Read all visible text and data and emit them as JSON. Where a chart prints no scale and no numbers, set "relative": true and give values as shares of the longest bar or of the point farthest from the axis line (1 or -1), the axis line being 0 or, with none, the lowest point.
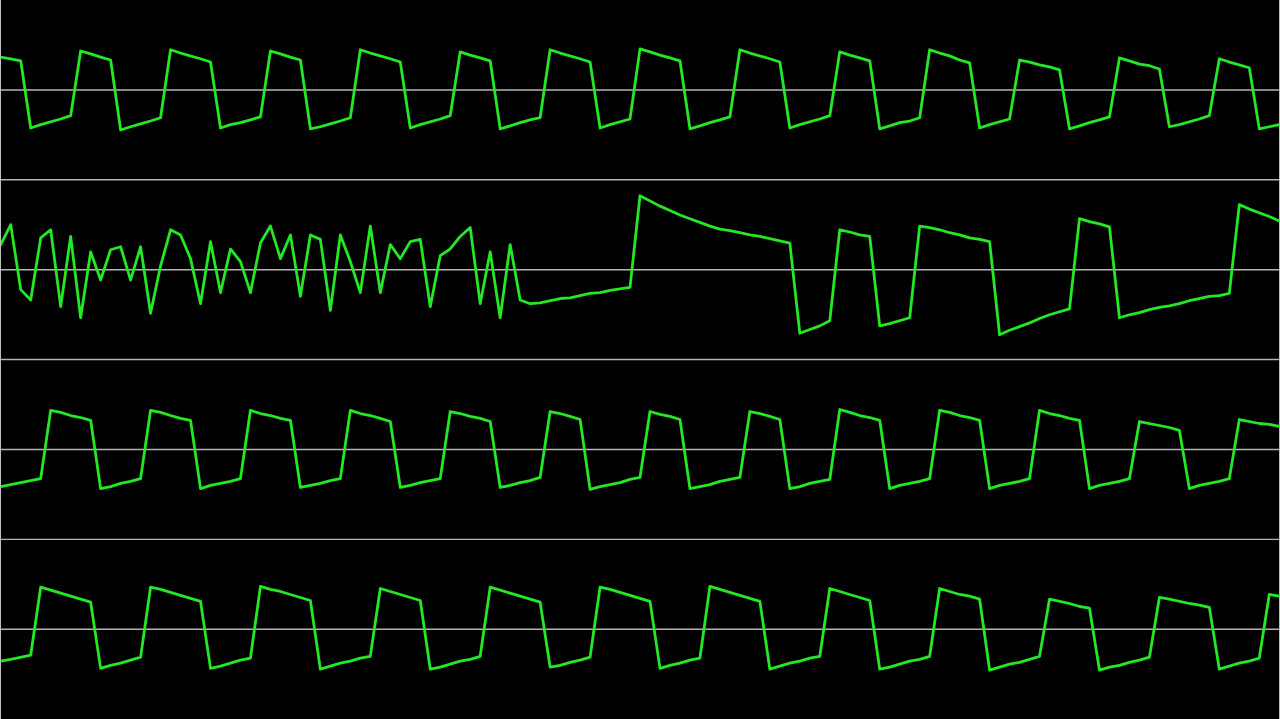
{
  "chart_data": [
    {
      "type": "line",
      "relative": true,
      "color": "#24e824",
      "categories": [
        null,
        null,
        null,
        null,
        null,
        null,
        null,
        null,
        null,
        null,
        null,
        null,
        null,
        null,
        null,
        null,
        null,
        null,
        null,
        null,
        null,
        null,
        null,
        null,
        null,
        null,
        null,
        null,
        null,
        null,
        null,
        null,
        null,
        null,
        null,
        null,
        null,
        null,
        null,
        null,
        null,
        null,
        null,
        null,
        null,
        null,
        null,
        null,
        null,
        null,
        null,
        null,
        null,
        null,
        null,
        null,
        null,
        null,
        null,
        null,
        null,
        null,
        null,
        null,
        null,
        null,
        null,
        null,
        null,
        null,
        null,
        null,
        null,
        null,
        null,
        null,
        null,
        null,
        null,
        null,
        null,
        null,
        null,
        null,
        null,
        null,
        null,
        null,
        null,
        null,
        null,
        null,
        null,
        null,
        null,
        null,
        null,
        null,
        null,
        null,
        null,
        null,
        null,
        null,
        null,
        null,
        null,
        null,
        null,
        null,
        null,
        null,
        null,
        null,
        null,
        null,
        null,
        null,
        null,
        null,
        null,
        null,
        null,
        null,
        null,
        null,
        null,
        null,
        null
      ],
      "values": [
        0.8,
        0.76,
        0.71,
        -0.93,
        -0.85,
        -0.78,
        -0.71,
        -0.63,
        0.95,
        0.88,
        0.8,
        0.73,
        -0.98,
        -0.9,
        -0.83,
        -0.76,
        -0.68,
        0.98,
        0.9,
        0.83,
        0.76,
        0.68,
        -0.93,
        -0.85,
        -0.8,
        -0.73,
        -0.66,
        0.95,
        0.88,
        0.8,
        0.73,
        -0.95,
        -0.9,
        -0.83,
        -0.76,
        -0.68,
        0.98,
        0.9,
        0.83,
        0.76,
        0.68,
        -0.93,
        -0.85,
        -0.78,
        -0.71,
        -0.63,
        0.93,
        0.85,
        0.78,
        0.71,
        -0.95,
        -0.88,
        -0.8,
        -0.73,
        -0.68,
        0.98,
        0.9,
        0.83,
        0.76,
        0.68,
        -0.93,
        -0.85,
        -0.78,
        -0.71,
        1.0,
        0.93,
        0.85,
        0.78,
        0.71,
        -0.95,
        -0.88,
        -0.8,
        -0.73,
        -0.66,
        0.98,
        0.9,
        0.83,
        0.76,
        0.68,
        -0.93,
        -0.85,
        -0.78,
        -0.71,
        -0.63,
        0.93,
        0.85,
        0.78,
        0.71,
        -0.95,
        -0.88,
        -0.8,
        -0.76,
        -0.68,
        0.98,
        0.9,
        0.83,
        0.73,
        0.66,
        -0.93,
        -0.85,
        -0.78,
        -0.71,
        0.73,
        0.68,
        0.61,
        0.56,
        0.49,
        -0.95,
        -0.88,
        -0.8,
        -0.73,
        -0.66,
        0.78,
        0.71,
        0.63,
        0.59,
        0.51,
        -0.9,
        -0.85,
        -0.78,
        -0.71,
        -0.63,
        0.76,
        0.68,
        0.61,
        0.54,
        -0.95,
        -0.9,
        -0.85
      ]
    },
    {
      "type": "line",
      "relative": true,
      "color": "#24e824",
      "categories": [
        null,
        null,
        null,
        null,
        null,
        null,
        null,
        null,
        null,
        null,
        null,
        null,
        null,
        null,
        null,
        null,
        null,
        null,
        null,
        null,
        null,
        null,
        null,
        null,
        null,
        null,
        null,
        null,
        null,
        null,
        null,
        null,
        null,
        null,
        null,
        null,
        null,
        null,
        null,
        null,
        null,
        null,
        null,
        null,
        null,
        null,
        null,
        null,
        null,
        null,
        null,
        null,
        null,
        null,
        null,
        null,
        null,
        null,
        null,
        null,
        null,
        null,
        null,
        null,
        null,
        null,
        null,
        null,
        null,
        null,
        null,
        null,
        null,
        null,
        null,
        null,
        null,
        null,
        null,
        null,
        null,
        null,
        null,
        null,
        null,
        null,
        null,
        null,
        null,
        null,
        null,
        null,
        null,
        null,
        null,
        null,
        null,
        null,
        null,
        null,
        null,
        null,
        null,
        null,
        null,
        null,
        null,
        null,
        null,
        null,
        null,
        null,
        null,
        null,
        null,
        null,
        null,
        null,
        null,
        null,
        null,
        null,
        null,
        null,
        null,
        null,
        null,
        null,
        null
      ],
      "values": [
        0.34,
        0.61,
        -0.27,
        -0.41,
        0.43,
        0.54,
        -0.5,
        0.45,
        -0.65,
        0.24,
        -0.14,
        0.27,
        0.31,
        -0.14,
        0.31,
        -0.59,
        0.05,
        0.54,
        0.47,
        0.15,
        -0.46,
        0.38,
        -0.31,
        0.28,
        0.11,
        -0.31,
        0.36,
        0.59,
        0.15,
        0.47,
        -0.36,
        0.47,
        0.41,
        -0.55,
        0.47,
        0.11,
        -0.31,
        0.59,
        -0.31,
        0.34,
        0.15,
        0.38,
        0.41,
        -0.5,
        0.19,
        0.28,
        0.45,
        0.57,
        -0.46,
        0.24,
        -0.65,
        0.34,
        -0.41,
        -0.46,
        -0.45,
        -0.42,
        -0.39,
        -0.38,
        -0.35,
        -0.32,
        -0.31,
        -0.28,
        -0.26,
        -0.24,
        1.0,
        0.93,
        0.86,
        0.8,
        0.74,
        0.69,
        0.64,
        0.59,
        0.55,
        0.53,
        0.5,
        0.47,
        0.45,
        0.42,
        0.39,
        0.36,
        -0.86,
        -0.81,
        -0.76,
        -0.69,
        0.54,
        0.51,
        0.47,
        0.45,
        -0.76,
        -0.73,
        -0.69,
        -0.65,
        0.59,
        0.57,
        0.54,
        0.5,
        0.47,
        0.43,
        0.41,
        0.38,
        -0.88,
        -0.82,
        -0.77,
        -0.72,
        -0.66,
        -0.61,
        -0.57,
        -0.53,
        0.69,
        0.65,
        0.62,
        0.58,
        -0.65,
        -0.61,
        -0.58,
        -0.54,
        -0.51,
        -0.49,
        -0.46,
        -0.42,
        -0.39,
        -0.36,
        -0.35,
        -0.32,
        0.88,
        0.82,
        0.77,
        0.72,
        0.66
      ]
    },
    {
      "type": "line",
      "relative": true,
      "color": "#24e824",
      "categories": [
        null,
        null,
        null,
        null,
        null,
        null,
        null,
        null,
        null,
        null,
        null,
        null,
        null,
        null,
        null,
        null,
        null,
        null,
        null,
        null,
        null,
        null,
        null,
        null,
        null,
        null,
        null,
        null,
        null,
        null,
        null,
        null,
        null,
        null,
        null,
        null,
        null,
        null,
        null,
        null,
        null,
        null,
        null,
        null,
        null,
        null,
        null,
        null,
        null,
        null,
        null,
        null,
        null,
        null,
        null,
        null,
        null,
        null,
        null,
        null,
        null,
        null,
        null,
        null,
        null,
        null,
        null,
        null,
        null,
        null,
        null,
        null,
        null,
        null,
        null,
        null,
        null,
        null,
        null,
        null,
        null,
        null,
        null,
        null,
        null,
        null,
        null,
        null,
        null,
        null,
        null,
        null,
        null,
        null,
        null,
        null,
        null,
        null,
        null,
        null,
        null,
        null,
        null,
        null,
        null,
        null,
        null,
        null,
        null,
        null,
        null,
        null,
        null,
        null,
        null,
        null,
        null,
        null,
        null,
        null,
        null,
        null,
        null,
        null,
        null,
        null,
        null,
        null,
        null
      ],
      "values": [
        -0.93,
        -0.88,
        -0.83,
        -0.78,
        -0.73,
        0.98,
        0.93,
        0.85,
        0.8,
        0.73,
        -0.98,
        -0.93,
        -0.85,
        -0.8,
        -0.73,
        0.98,
        0.93,
        0.85,
        0.78,
        0.73,
        -0.98,
        -0.9,
        -0.85,
        -0.8,
        -0.73,
        0.98,
        0.9,
        0.85,
        0.78,
        0.73,
        -0.95,
        -0.9,
        -0.85,
        -0.78,
        -0.73,
        0.98,
        0.9,
        0.85,
        0.78,
        0.7,
        -0.95,
        -0.9,
        -0.83,
        -0.78,
        -0.73,
        0.95,
        0.9,
        0.83,
        0.78,
        0.7,
        -0.95,
        -0.9,
        -0.83,
        -0.78,
        -0.7,
        0.95,
        0.9,
        0.83,
        0.75,
        -1.0,
        -0.93,
        -0.88,
        -0.83,
        -0.75,
        -0.7,
        0.95,
        0.88,
        0.83,
        0.75,
        -0.98,
        -0.93,
        -0.88,
        -0.8,
        -0.75,
        -0.7,
        0.95,
        0.9,
        0.83,
        0.75,
        -0.98,
        -0.93,
        -0.85,
        -0.8,
        -0.75,
        1.0,
        0.93,
        0.85,
        0.8,
        0.73,
        -0.98,
        -0.9,
        -0.85,
        -0.8,
        -0.73,
        0.98,
        0.93,
        0.85,
        0.8,
        0.73,
        -0.98,
        -0.9,
        -0.85,
        -0.8,
        -0.73,
        0.98,
        0.9,
        0.85,
        0.78,
        0.73,
        -0.98,
        -0.9,
        -0.85,
        -0.8,
        -0.73,
        0.7,
        0.65,
        0.6,
        0.55,
        0.48,
        -0.98,
        -0.9,
        -0.85,
        -0.8,
        -0.73,
        0.75,
        0.7,
        0.65,
        0.63,
        0.58
      ]
    },
    {
      "type": "line",
      "relative": true,
      "color": "#24e824",
      "categories": [
        null,
        null,
        null,
        null,
        null,
        null,
        null,
        null,
        null,
        null,
        null,
        null,
        null,
        null,
        null,
        null,
        null,
        null,
        null,
        null,
        null,
        null,
        null,
        null,
        null,
        null,
        null,
        null,
        null,
        null,
        null,
        null,
        null,
        null,
        null,
        null,
        null,
        null,
        null,
        null,
        null,
        null,
        null,
        null,
        null,
        null,
        null,
        null,
        null,
        null,
        null,
        null,
        null,
        null,
        null,
        null,
        null,
        null,
        null,
        null,
        null,
        null,
        null,
        null,
        null,
        null,
        null,
        null,
        null,
        null,
        null,
        null,
        null,
        null,
        null,
        null,
        null,
        null,
        null,
        null,
        null,
        null,
        null,
        null,
        null,
        null,
        null,
        null,
        null,
        null,
        null,
        null,
        null,
        null,
        null,
        null,
        null,
        null,
        null,
        null,
        null,
        null,
        null,
        null,
        null,
        null,
        null,
        null,
        null,
        null,
        null,
        null,
        null,
        null,
        null,
        null,
        null,
        null,
        null,
        null,
        null,
        null,
        null,
        null,
        null,
        null,
        null,
        null,
        null
      ],
      "values": [
        -0.74,
        -0.7,
        -0.65,
        -0.6,
        0.98,
        0.91,
        0.84,
        0.77,
        0.7,
        0.63,
        -0.91,
        -0.84,
        -0.79,
        -0.72,
        -0.65,
        0.98,
        0.93,
        0.86,
        0.79,
        0.72,
        0.65,
        -0.91,
        -0.86,
        -0.79,
        -0.72,
        -0.67,
        1.0,
        0.93,
        0.88,
        0.81,
        0.74,
        0.67,
        -0.93,
        -0.86,
        -0.79,
        -0.74,
        -0.67,
        -0.63,
        0.95,
        0.88,
        0.81,
        0.74,
        0.67,
        -0.93,
        -0.88,
        -0.81,
        -0.74,
        -0.7,
        -0.63,
        0.98,
        0.91,
        0.84,
        0.77,
        0.7,
        0.63,
        -0.88,
        -0.84,
        -0.77,
        -0.72,
        -0.65,
        0.98,
        0.93,
        0.86,
        0.79,
        0.72,
        0.65,
        -0.91,
        -0.84,
        -0.79,
        -0.72,
        -0.67,
        1.0,
        0.93,
        0.86,
        0.79,
        0.72,
        0.65,
        -0.93,
        -0.86,
        -0.79,
        -0.74,
        -0.67,
        -0.63,
        0.95,
        0.88,
        0.81,
        0.74,
        0.67,
        -0.93,
        -0.88,
        -0.81,
        -0.74,
        -0.7,
        -0.63,
        0.95,
        0.88,
        0.81,
        0.77,
        0.7,
        -0.95,
        -0.88,
        -0.81,
        -0.77,
        -0.7,
        -0.63,
        0.7,
        0.65,
        0.6,
        0.53,
        0.49,
        -0.95,
        -0.88,
        -0.84,
        -0.77,
        -0.72,
        -0.65,
        0.74,
        0.7,
        0.65,
        0.6,
        0.56,
        0.51,
        -0.93,
        -0.86,
        -0.79,
        -0.74,
        -0.67,
        0.81,
        0.77
      ]
    }
  ]
}
